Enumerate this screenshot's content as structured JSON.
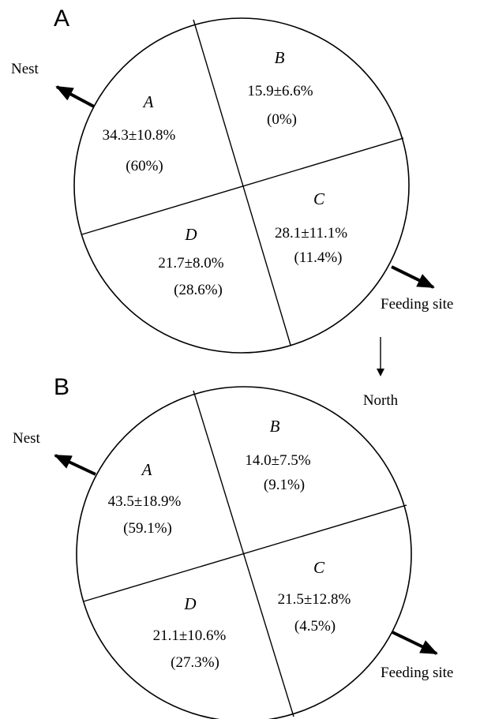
{
  "panels": [
    {
      "label": "A",
      "nest_label": "Nest",
      "feeding_label": "Feeding site",
      "quadrants": [
        {
          "letter": "A",
          "value": "34.3±10.8%",
          "percent": "(60%)"
        },
        {
          "letter": "B",
          "value": "15.9±6.6%",
          "percent": "(0%)"
        },
        {
          "letter": "C",
          "value": "28.1±11.1%",
          "percent": "(11.4%)"
        },
        {
          "letter": "D",
          "value": "21.7±8.0%",
          "percent": "(28.6%)"
        }
      ]
    },
    {
      "label": "B",
      "nest_label": "Nest",
      "feeding_label": "Feeding site",
      "quadrants": [
        {
          "letter": "A",
          "value": "43.5±18.9%",
          "percent": "(59.1%)"
        },
        {
          "letter": "B",
          "value": "14.0±7.5%",
          "percent": "(9.1%)"
        },
        {
          "letter": "C",
          "value": "21.5±12.8%",
          "percent": "(4.5%)"
        },
        {
          "letter": "D",
          "value": "21.1±10.6%",
          "percent": "(27.3%)"
        }
      ]
    }
  ],
  "north_label": "North"
}
